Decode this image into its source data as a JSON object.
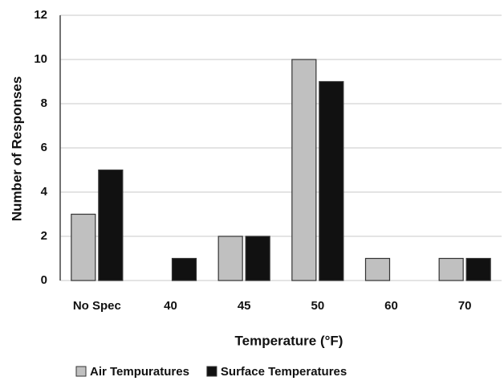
{
  "chart_data": {
    "type": "bar",
    "categories": [
      "No Spec",
      "40",
      "45",
      "50",
      "60",
      "70"
    ],
    "series": [
      {
        "name": "Air Tempuratures",
        "color": "#c0c0c0",
        "values": [
          3,
          0,
          2,
          10,
          1,
          1
        ]
      },
      {
        "name": "Surface Temperatures",
        "color": "#111111",
        "values": [
          5,
          1,
          2,
          9,
          0,
          1
        ]
      }
    ],
    "xlabel": "Temperature (°F)",
    "ylabel": "Number of Responses",
    "ylim": [
      0,
      12
    ],
    "yticks": [
      0,
      2,
      4,
      6,
      8,
      10,
      12
    ],
    "grid": true,
    "legend": "bottom"
  }
}
